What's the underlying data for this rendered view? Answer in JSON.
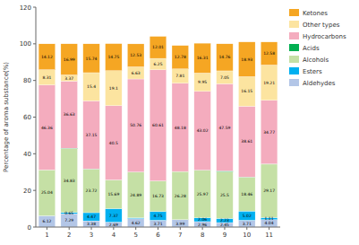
{
  "chart_data": {
    "type": "bar",
    "stacked": true,
    "data_labels": true,
    "grid": false,
    "legend": "right",
    "y_label": "Percentage of aroma substance(%)",
    "categories": [
      "1",
      "2",
      "3",
      "4",
      "5",
      "6",
      "7",
      "8",
      "9",
      "10",
      "11"
    ],
    "ylim": [
      0,
      120
    ],
    "yticks": [
      0,
      20,
      40,
      60,
      80,
      100,
      120
    ],
    "series": [
      {
        "name": "Aldehydes",
        "color": "#b3c6e7",
        "values": [
          6.12,
          7.29,
          3.38,
          2.69,
          4.62,
          3.71,
          3.99,
          2.96,
          2.45,
          3.71,
          4.04
        ]
      },
      {
        "name": "Esters",
        "color": "#00b0f0",
        "values": [
          0.04,
          0.65,
          4.47,
          7.37,
          0.43,
          4.75,
          0.05,
          2.06,
          2.23,
          5.02,
          1.11
        ]
      },
      {
        "name": "Alcohols",
        "color": "#c5e0a5",
        "values": [
          25.04,
          34.83,
          23.72,
          15.69,
          24.89,
          16.73,
          26.28,
          25.97,
          25.5,
          18.46,
          29.17
        ]
      },
      {
        "name": "Acids",
        "color": "#00af50",
        "values": [
          0.0,
          0.25,
          0.14,
          0.0,
          0.11,
          0.0,
          0.0,
          0.07,
          0.43,
          0.14,
          0.12
        ]
      },
      {
        "name": "Hydrocarbons",
        "color": "#f4acbe",
        "values": [
          46.36,
          36.63,
          37.15,
          40.5,
          50.76,
          60.61,
          48.18,
          43.02,
          47.59,
          38.61,
          34.77
        ]
      },
      {
        "name": "Other types",
        "color": "#fce4a0",
        "values": [
          8.31,
          3.37,
          15.4,
          19.1,
          6.63,
          6.25,
          7.81,
          9.95,
          7.05,
          16.15,
          19.21
        ]
      },
      {
        "name": "Ketones",
        "color": "#f5a623",
        "values": [
          14.12,
          16.99,
          15.74,
          14.75,
          12.53,
          12.01,
          12.78,
          16.31,
          14.76,
          18.93,
          12.58
        ]
      }
    ]
  }
}
